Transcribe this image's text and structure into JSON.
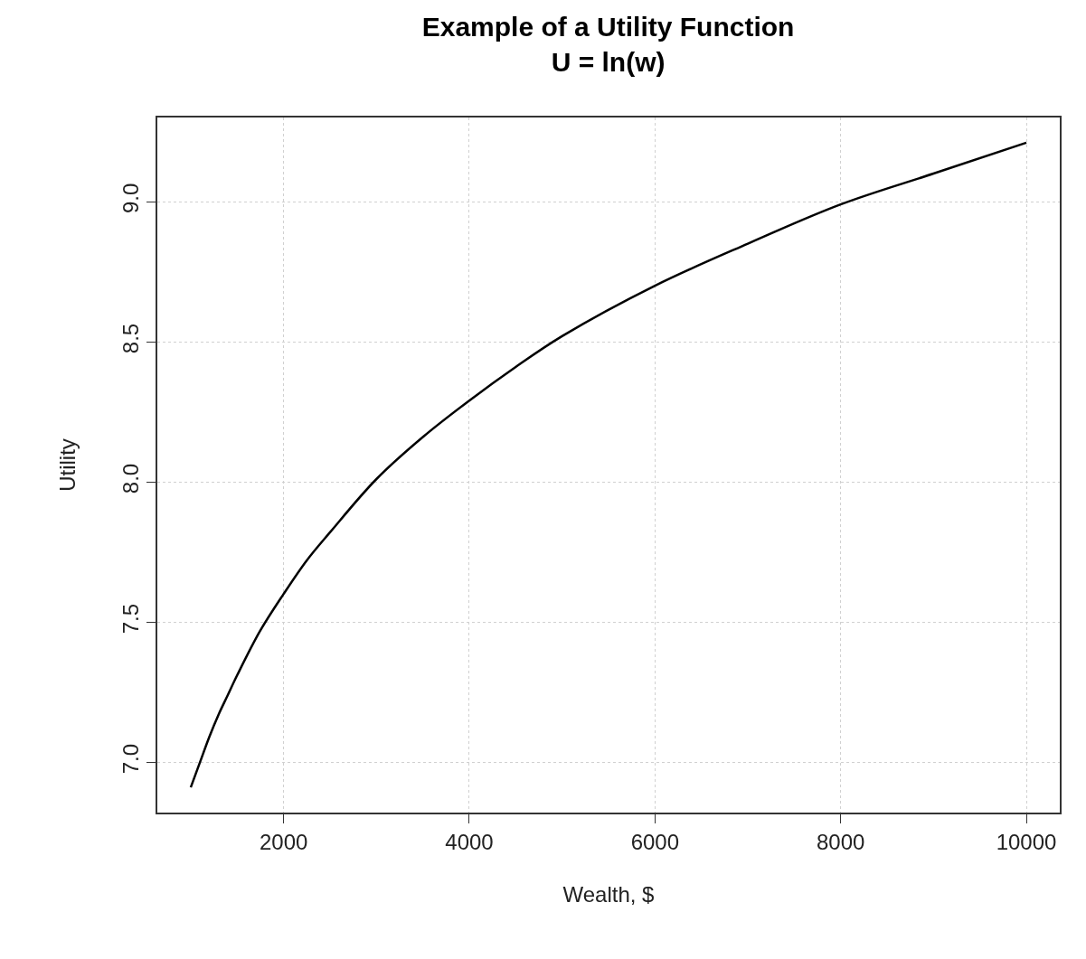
{
  "chart_data": {
    "type": "line",
    "title": "Example of a Utility Function",
    "subtitle": "U = ln(w)",
    "xlabel": "Wealth, $",
    "ylabel": "Utility",
    "x": [
      1000,
      1100,
      1200,
      1300,
      1400,
      1500,
      1750,
      2000,
      2250,
      2500,
      3000,
      3500,
      4000,
      4500,
      5000,
      6000,
      7000,
      8000,
      9000,
      10000
    ],
    "series": [
      {
        "color": "#000000",
        "values": [
          6.91,
          7.0,
          7.09,
          7.17,
          7.24,
          7.31,
          7.47,
          7.6,
          7.72,
          7.82,
          8.01,
          8.16,
          8.29,
          8.41,
          8.52,
          8.7,
          8.85,
          8.99,
          9.1,
          9.21
        ]
      }
    ],
    "xlim": [
      640,
      10360
    ],
    "xticks": [
      2000,
      4000,
      6000,
      8000,
      10000
    ],
    "ylim": [
      6.82,
      9.3
    ],
    "yticks": [
      {
        "value": 7,
        "label": "7.0"
      },
      {
        "value": 7.5,
        "label": "7.5"
      },
      {
        "value": 8,
        "label": "8.0"
      },
      {
        "value": 8.5,
        "label": "8.5"
      },
      {
        "value": 9,
        "label": "9.0"
      }
    ],
    "grid": true,
    "marker": "none",
    "line_style": "solid"
  }
}
